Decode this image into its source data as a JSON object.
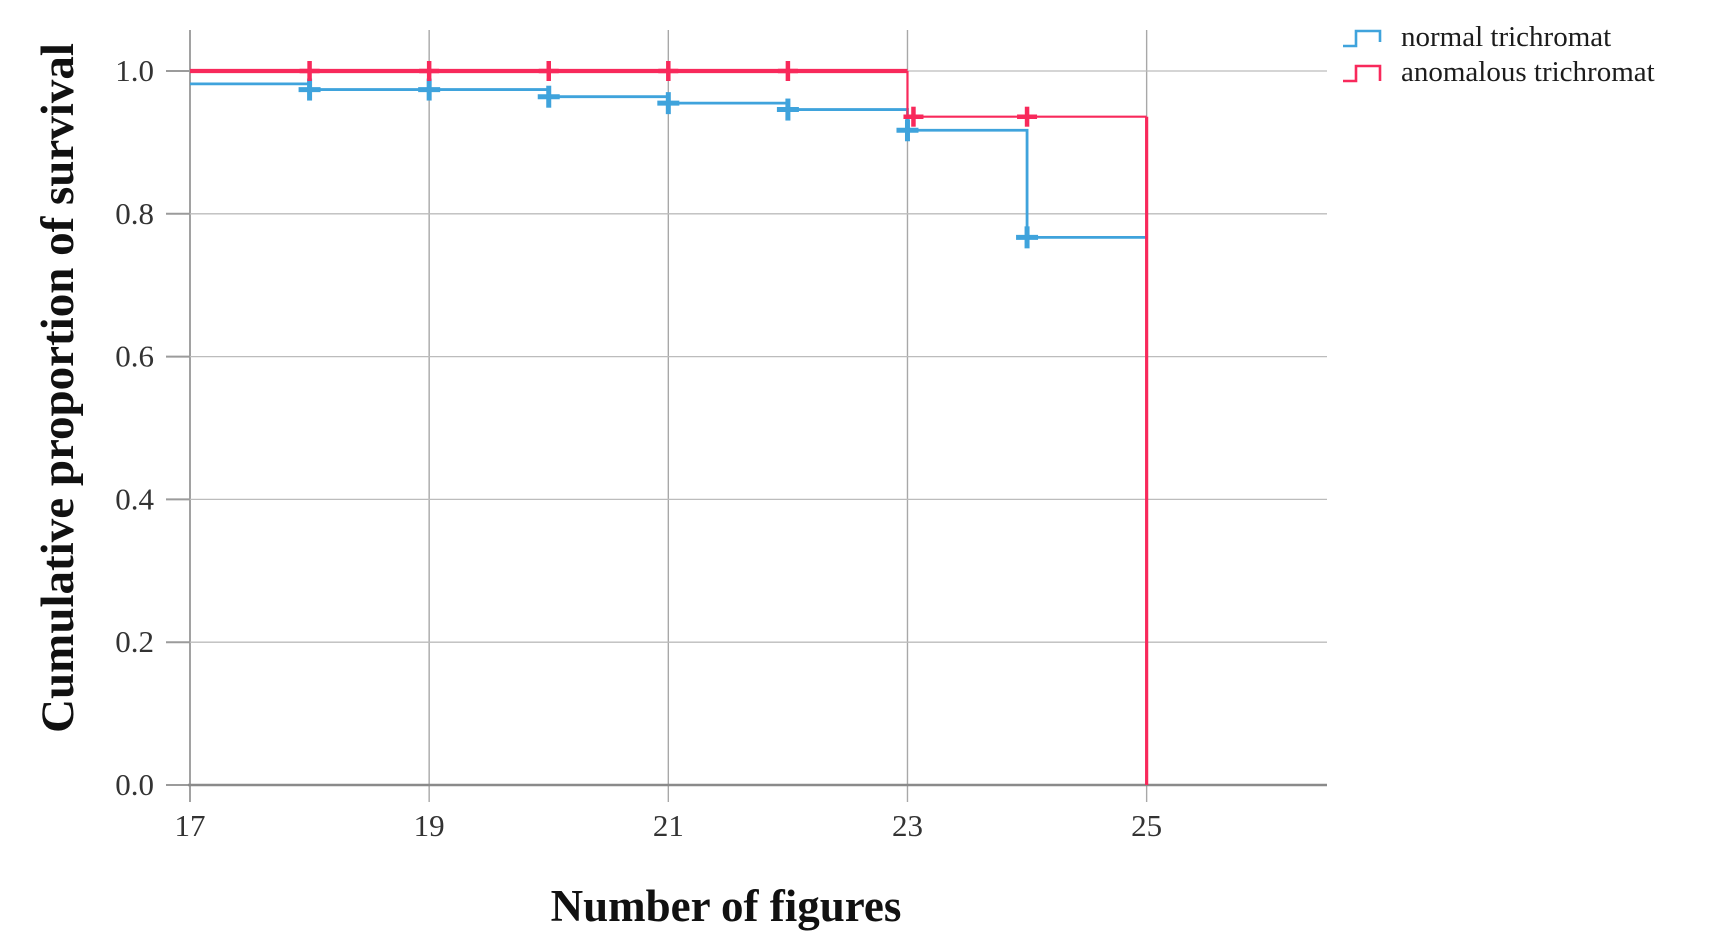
{
  "axes": {
    "x_title": "Number of figures",
    "y_title": "Cumulative proportion of survival"
  },
  "legend": {
    "items": [
      {
        "label": "normal trichromat",
        "color": "#3FA3DC"
      },
      {
        "label": "anomalous trichromat",
        "color": "#F8295B"
      }
    ]
  },
  "chart_data": {
    "type": "line",
    "subtype": "kaplan-meier-step",
    "title": "",
    "xlabel": "Number of figures",
    "ylabel": "Cumulative proportion of survival",
    "xlim": [
      17,
      26.5
    ],
    "ylim": [
      0,
      1.057
    ],
    "grid": true,
    "legend_position": "top-right-outside",
    "x_ticks": [
      17,
      19,
      21,
      23,
      25
    ],
    "x_tick_labels": [
      "17",
      "19",
      "21",
      "23",
      "25"
    ],
    "y_ticks": [
      1.0,
      0.8,
      0.6,
      0.4,
      0.2,
      0.0
    ],
    "y_tick_labels": [
      "1.0",
      "0.8",
      "0.6",
      "0.4",
      "0.2",
      "0.0"
    ],
    "series": [
      {
        "name": "normal trichromat",
        "color": "#3FA3DC",
        "marker": "plus",
        "marker_size": 22,
        "marker_stroke": 5,
        "segments": [
          {
            "width": 2.8,
            "points": [
              [
                17,
                0.982
              ],
              [
                18,
                0.982
              ],
              [
                18,
                0.974
              ],
              [
                20,
                0.974
              ],
              [
                20,
                0.964
              ],
              [
                21,
                0.964
              ],
              [
                21,
                0.955
              ],
              [
                22,
                0.955
              ],
              [
                22,
                0.946
              ],
              [
                23,
                0.946
              ],
              [
                23,
                0.917
              ],
              [
                24,
                0.917
              ],
              [
                24,
                0.767
              ],
              [
                25,
                0.767
              ]
            ]
          }
        ],
        "censor_marks": [
          [
            18,
            0.974
          ],
          [
            19,
            0.974
          ],
          [
            20,
            0.964
          ],
          [
            21,
            0.955
          ],
          [
            22,
            0.946
          ],
          [
            23,
            0.917
          ],
          [
            24,
            0.767
          ]
        ]
      },
      {
        "name": "anomalous trichromat",
        "color": "#F8295B",
        "marker": "plus",
        "marker_size": 20,
        "marker_stroke": 4.5,
        "segments": [
          {
            "width": 4.2,
            "points": [
              [
                17,
                1.0
              ],
              [
                23,
                1.0
              ]
            ]
          },
          {
            "width": 2.2,
            "points": [
              [
                23,
                1.0
              ],
              [
                23,
                0.936
              ],
              [
                25,
                0.936
              ]
            ]
          },
          {
            "width": 3.2,
            "points": [
              [
                25,
                0.936
              ],
              [
                25,
                0.0
              ]
            ]
          }
        ],
        "censor_marks": [
          [
            18,
            1.0
          ],
          [
            19,
            1.0
          ],
          [
            20,
            1.0
          ],
          [
            21,
            1.0
          ],
          [
            22,
            1.0
          ],
          [
            23.05,
            0.936
          ],
          [
            24,
            0.936
          ]
        ]
      }
    ]
  },
  "style": {
    "grid_color": "#bcbcbc",
    "axis_color": "#8a8a8a",
    "tick_color": "#9b9b9b",
    "tick_label_color": "#333333"
  }
}
